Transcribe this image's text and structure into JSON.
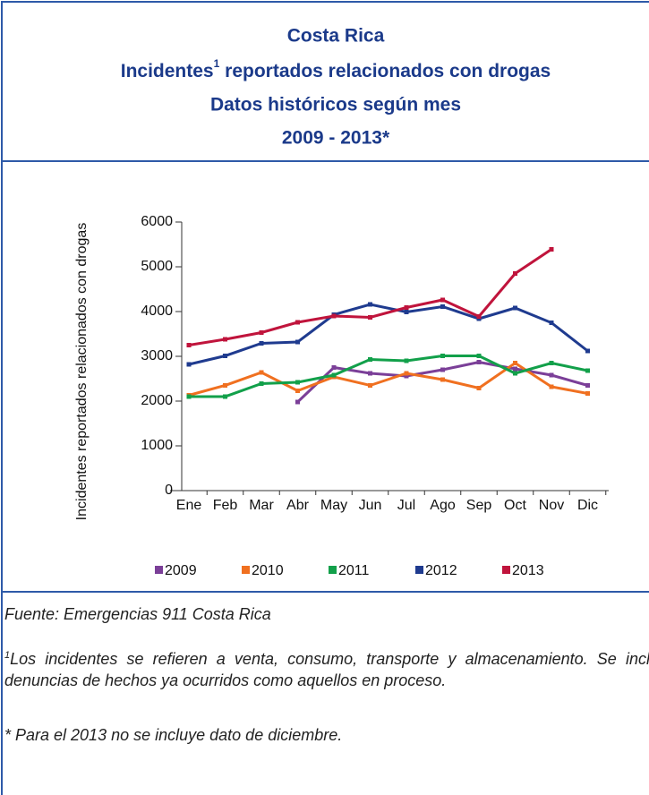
{
  "chart_data": {
    "type": "line",
    "title": [
      "Costa Rica",
      "Incidentes",
      "Datos históricos según mes",
      "2009 - 2013*"
    ],
    "title_note_mark": "1",
    "title_rest": " reportados relacionados con drogas",
    "ylabel": "Incidentes reportados relacionados con drogas",
    "categories": [
      "Ene",
      "Feb",
      "Mar",
      "Abr",
      "May",
      "Jun",
      "Jul",
      "Ago",
      "Sep",
      "Oct",
      "Nov",
      "Dic"
    ],
    "series": [
      {
        "name": "2009",
        "color": "#7b3f98",
        "values": [
          null,
          null,
          null,
          1980,
          2750,
          2620,
          2560,
          2700,
          2870,
          2720,
          2580,
          2350
        ]
      },
      {
        "name": "2010",
        "color": "#f07020",
        "values": [
          2130,
          2350,
          2640,
          2230,
          2540,
          2350,
          2620,
          2480,
          2290,
          2850,
          2320,
          2170
        ]
      },
      {
        "name": "2011",
        "color": "#12a04a",
        "values": [
          2100,
          2100,
          2390,
          2420,
          2580,
          2930,
          2900,
          3010,
          3010,
          2620,
          2850,
          2680
        ]
      },
      {
        "name": "2012",
        "color": "#1f3b8f",
        "values": [
          2820,
          3010,
          3290,
          3320,
          3930,
          4160,
          3990,
          4110,
          3840,
          4080,
          3750,
          3120
        ]
      },
      {
        "name": "2013",
        "color": "#c0143c",
        "values": [
          3250,
          3380,
          3530,
          3760,
          3900,
          3870,
          4090,
          4260,
          3890,
          4850,
          5390,
          null
        ]
      }
    ],
    "ylim": [
      0,
      6000
    ],
    "yticks": [
      0,
      1000,
      2000,
      3000,
      4000,
      5000,
      6000
    ],
    "grid": false,
    "legend": "bottom"
  },
  "footnotes": {
    "source": "Fuente: Emergencias 911 Costa Rica",
    "note_mark": "1",
    "note": "Los incidentes se refieren a venta, consumo, transporte y almacenamiento. Se incluyen denuncias de hechos ya ocurridos como aquellos en proceso.",
    "asterisk": "* Para el 2013 no se incluye dato de diciembre."
  }
}
